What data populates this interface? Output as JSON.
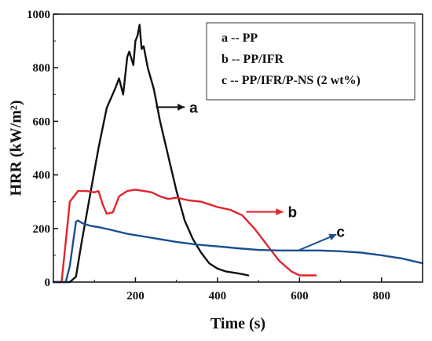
{
  "chart_data": {
    "type": "line",
    "xlabel": "Time (s)",
    "ylabel": "HRR (kW/m²)",
    "xlim": [
      0,
      900
    ],
    "ylim": [
      0,
      1000
    ],
    "xticks": [
      200,
      400,
      600,
      800
    ],
    "yticks": [
      0,
      200,
      400,
      600,
      800,
      1000
    ],
    "legend_position": "top-right",
    "legend": [
      "a -- PP",
      "b -- PP/IFR",
      "c -- PP/IFR/P-NS (2 wt%)"
    ],
    "series": [
      {
        "label": "a",
        "color": "#111111",
        "x": [
          0,
          40,
          55,
          70,
          90,
          110,
          130,
          150,
          160,
          170,
          180,
          185,
          195,
          200,
          205,
          210,
          215,
          220,
          230,
          245,
          260,
          280,
          300,
          320,
          340,
          360,
          380,
          400,
          420,
          440,
          460,
          475
        ],
        "y": [
          0,
          0,
          20,
          160,
          330,
          500,
          650,
          720,
          760,
          700,
          840,
          860,
          810,
          900,
          920,
          960,
          870,
          880,
          800,
          720,
          600,
          470,
          340,
          230,
          160,
          110,
          70,
          50,
          40,
          35,
          30,
          25
        ]
      },
      {
        "label": "b",
        "color": "#e0242c",
        "x": [
          0,
          20,
          30,
          40,
          60,
          80,
          100,
          110,
          120,
          130,
          145,
          160,
          180,
          200,
          220,
          240,
          260,
          280,
          300,
          330,
          360,
          400,
          430,
          460,
          490,
          520,
          550,
          580,
          600,
          620,
          640
        ],
        "y": [
          0,
          0,
          150,
          300,
          340,
          340,
          335,
          340,
          290,
          255,
          260,
          320,
          340,
          345,
          340,
          335,
          320,
          310,
          315,
          305,
          300,
          280,
          270,
          250,
          200,
          140,
          80,
          40,
          25,
          25,
          25
        ]
      },
      {
        "label": "c",
        "color": "#1a4f8f",
        "x": [
          0,
          30,
          40,
          50,
          55,
          60,
          70,
          90,
          110,
          140,
          180,
          220,
          260,
          300,
          350,
          400,
          450,
          500,
          550,
          600,
          650,
          700,
          750,
          800,
          850,
          900
        ],
        "y": [
          0,
          0,
          60,
          170,
          225,
          230,
          220,
          210,
          205,
          195,
          180,
          170,
          160,
          150,
          140,
          133,
          126,
          120,
          118,
          118,
          118,
          115,
          110,
          100,
          88,
          70
        ]
      }
    ],
    "annotations": [
      "a",
      "b",
      "c"
    ]
  }
}
